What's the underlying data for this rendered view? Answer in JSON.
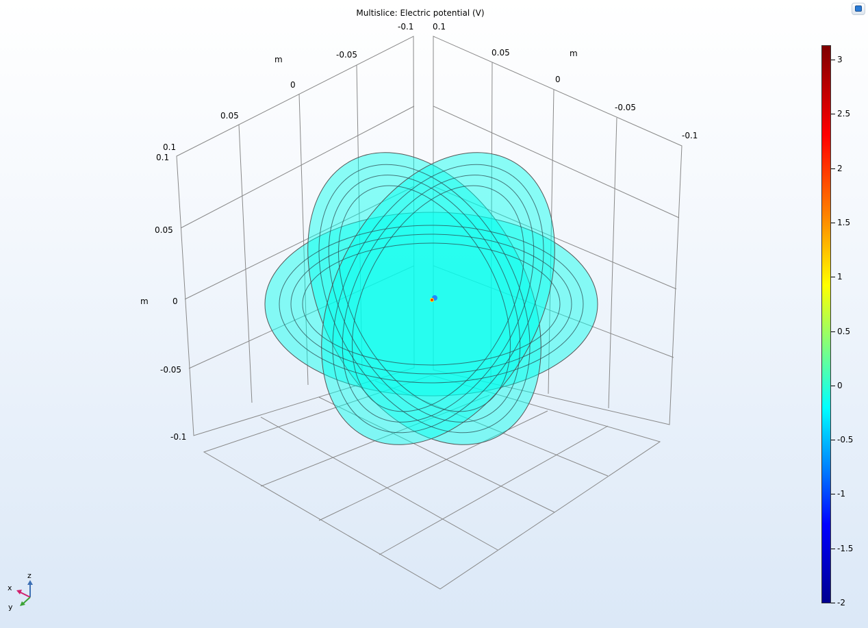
{
  "plot": {
    "title": "Multislice: Electric potential (V)"
  },
  "axes": {
    "unit": "m",
    "x_ticks": [
      "0.1",
      "0.05",
      "0",
      "-0.05",
      "-0.1"
    ],
    "y_ticks": [
      "-0.1",
      "-0.05",
      "0",
      "0.05",
      "0.1"
    ],
    "z_ticks": [
      "0.1",
      "0.05",
      "0",
      "-0.05",
      "-0.1"
    ]
  },
  "colorbar": {
    "min": -2,
    "max": 3.15,
    "ticks": [
      "3",
      "2.5",
      "2",
      "1.5",
      "1",
      "0.5",
      "0",
      "-0.5",
      "-1",
      "-1.5",
      "-2"
    ],
    "colors": [
      "#00008f",
      "#0000ff",
      "#007fff",
      "#00ffff",
      "#7fff7f",
      "#ffff00",
      "#ff7f00",
      "#ff0000",
      "#7f0000"
    ]
  },
  "triad": {
    "x": "x",
    "y": "y",
    "z": "z",
    "colors": {
      "x": "#d0206c",
      "y": "#3aa335",
      "z": "#3c6fb4"
    }
  },
  "slice_color": "#00ffee",
  "toolbar": {
    "graphics_icon": "graphics-window-icon"
  }
}
